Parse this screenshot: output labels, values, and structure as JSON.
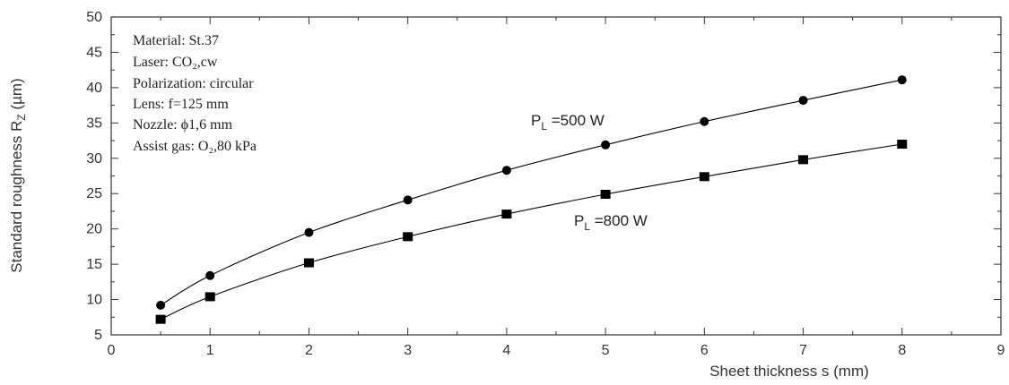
{
  "chart_data": {
    "type": "line",
    "title": "",
    "xlabel": "Sheet thickness  s (mm)",
    "ylabel": "Standard roughness R",
    "ylabel_sub": "Z",
    "ylabel_unit": " (µm)",
    "xlim": [
      0,
      9
    ],
    "ylim": [
      5,
      50
    ],
    "xticks": [
      0,
      1,
      2,
      3,
      4,
      5,
      6,
      7,
      8,
      9
    ],
    "yticks": [
      5,
      10,
      15,
      20,
      25,
      30,
      35,
      40,
      45,
      50
    ],
    "grid": false,
    "series": [
      {
        "name": "P_L =500 W",
        "label_main": "P",
        "label_sub": "L",
        "label_rest": " =500 W",
        "marker": "circle",
        "color": "#000000",
        "x": [
          0.5,
          1,
          2,
          3,
          4,
          5,
          6,
          7,
          8
        ],
        "y": [
          9.2,
          13.4,
          19.5,
          24.1,
          28.3,
          31.9,
          35.2,
          38.2,
          41.1
        ]
      },
      {
        "name": "P_L =800 W",
        "label_main": "P",
        "label_sub": "L",
        "label_rest": " =800 W",
        "marker": "square",
        "color": "#000000",
        "x": [
          0.5,
          1,
          2,
          3,
          4,
          5,
          6,
          7,
          8
        ],
        "y": [
          7.2,
          10.4,
          15.2,
          18.9,
          22.1,
          24.9,
          27.4,
          29.8,
          32.0
        ]
      }
    ],
    "annotations": [
      "Material: St.37",
      "Laser: CO₂,cw",
      "Polarization: circular",
      "Lens: f=125 mm",
      "Nozzle: ϕ1,6 mm",
      "Assist gas: O₂,80 kPa"
    ]
  }
}
